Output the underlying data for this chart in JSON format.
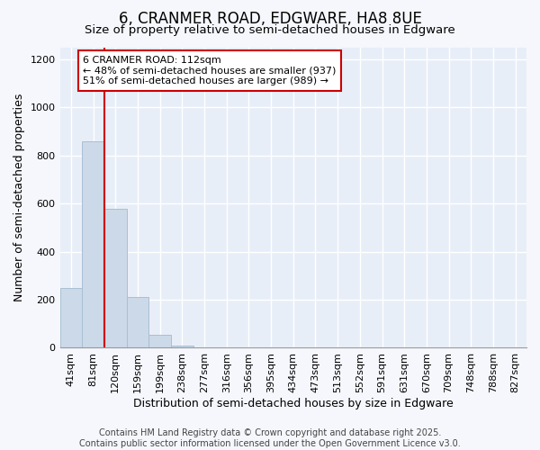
{
  "title": "6, CRANMER ROAD, EDGWARE, HA8 8UE",
  "subtitle": "Size of property relative to semi-detached houses in Edgware",
  "xlabel": "Distribution of semi-detached houses by size in Edgware",
  "ylabel": "Number of semi-detached properties",
  "categories": [
    "41sqm",
    "81sqm",
    "120sqm",
    "159sqm",
    "199sqm",
    "238sqm",
    "277sqm",
    "316sqm",
    "356sqm",
    "395sqm",
    "434sqm",
    "473sqm",
    "513sqm",
    "552sqm",
    "591sqm",
    "631sqm",
    "670sqm",
    "709sqm",
    "748sqm",
    "788sqm",
    "827sqm"
  ],
  "values": [
    250,
    860,
    580,
    210,
    55,
    10,
    0,
    0,
    0,
    0,
    0,
    0,
    0,
    0,
    0,
    0,
    0,
    0,
    0,
    0,
    0
  ],
  "bar_color": "#ccd9e8",
  "bar_edgecolor": "#a8bfd4",
  "vline_pos": 1.5,
  "vline_color": "#cc0000",
  "annotation_text": "6 CRANMER ROAD: 112sqm\n← 48% of semi-detached houses are smaller (937)\n51% of semi-detached houses are larger (989) →",
  "annotation_box_facecolor": "#ffffff",
  "annotation_box_edgecolor": "#cc0000",
  "ylim": [
    0,
    1250
  ],
  "yticks": [
    0,
    200,
    400,
    600,
    800,
    1000,
    1200
  ],
  "plot_bg_color": "#e8eef8",
  "fig_bg_color": "#f5f7fc",
  "grid_color": "#ffffff",
  "footer": "Contains HM Land Registry data © Crown copyright and database right 2025.\nContains public sector information licensed under the Open Government Licence v3.0.",
  "title_fontsize": 12,
  "subtitle_fontsize": 9.5,
  "axis_label_fontsize": 9,
  "tick_fontsize": 8,
  "annotation_fontsize": 8,
  "footer_fontsize": 7
}
